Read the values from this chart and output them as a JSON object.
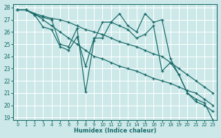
{
  "xlabel": "Humidex (Indice chaleur)",
  "bg_color": "#cce8e8",
  "grid_color": "#ffffff",
  "line_color": "#1a6b6b",
  "xlim": [
    -0.5,
    23.5
  ],
  "ylim": [
    18.8,
    28.3
  ],
  "xticks": [
    0,
    1,
    2,
    3,
    4,
    5,
    6,
    7,
    8,
    9,
    10,
    11,
    12,
    13,
    14,
    15,
    16,
    17,
    18,
    19,
    20,
    21,
    22,
    23
  ],
  "yticks": [
    19,
    20,
    21,
    22,
    23,
    24,
    25,
    26,
    27,
    28
  ],
  "series": [
    [
      27.8,
      27.8,
      27.4,
      27.2,
      27.0,
      25.0,
      24.8,
      26.3,
      21.1,
      25.3,
      26.8,
      26.8,
      27.5,
      26.5,
      26.0,
      27.5,
      26.8,
      27.0,
      23.8,
      22.5,
      21.0,
      20.5,
      20.2,
      18.8
    ],
    [
      27.8,
      27.8,
      27.4,
      26.4,
      26.2,
      24.8,
      24.5,
      25.6,
      23.2,
      25.5,
      25.5,
      26.8,
      26.5,
      26.2,
      25.5,
      25.8,
      26.5,
      22.8,
      23.5,
      22.5,
      21.0,
      20.3,
      20.0,
      19.5
    ],
    [
      27.8,
      27.8,
      27.5,
      27.3,
      27.1,
      27.0,
      26.8,
      26.5,
      26.2,
      26.0,
      25.8,
      25.5,
      25.2,
      25.0,
      24.8,
      24.5,
      24.2,
      24.0,
      23.5,
      23.0,
      22.5,
      22.0,
      21.5,
      21.0
    ],
    [
      27.8,
      27.8,
      27.5,
      27.0,
      26.5,
      26.0,
      25.5,
      25.0,
      24.5,
      24.0,
      23.8,
      23.5,
      23.2,
      23.0,
      22.8,
      22.5,
      22.2,
      22.0,
      21.8,
      21.5,
      21.2,
      21.0,
      20.5,
      20.0
    ]
  ]
}
